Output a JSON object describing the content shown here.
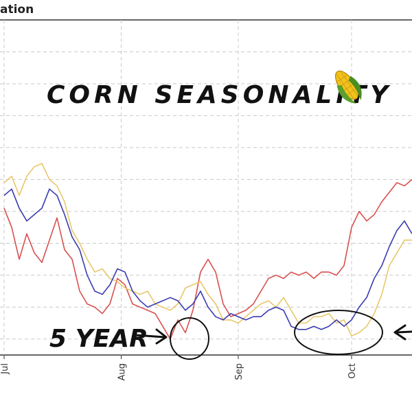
{
  "header": {
    "title": "ation"
  },
  "annotation": {
    "title": "CORN SEASONALITY",
    "label": "5 YEAR",
    "icon": "corn-icon"
  },
  "chart_data": {
    "type": "line",
    "title": "",
    "xlabel": "",
    "ylabel": "",
    "x_tick_labels": [
      {
        "label": "Jul",
        "at": 0
      },
      {
        "label": "Aug",
        "at": 31
      },
      {
        "label": "Sep",
        "at": 62
      },
      {
        "label": "Oct",
        "at": 92
      }
    ],
    "xlim": [
      0,
      108
    ],
    "ylim": [
      0,
      10.5
    ],
    "grid": true,
    "y_gridlines": [
      0.5,
      1.5,
      2.5,
      3.5,
      4.5,
      5.5,
      6.5,
      7.5,
      8.5,
      9.5
    ],
    "x_gridlines": [
      0,
      31,
      62,
      92
    ],
    "series": [
      {
        "color": "#d94f4f",
        "x": [
          0,
          2,
          4,
          6,
          8,
          10,
          12,
          14,
          16,
          18,
          20,
          22,
          24,
          26,
          28,
          30,
          32,
          34,
          36,
          38,
          40,
          42,
          44,
          46,
          48,
          50,
          52,
          54,
          56,
          58,
          60,
          62,
          64,
          66,
          68,
          70,
          72,
          74,
          76,
          78,
          80,
          82,
          84,
          86,
          88,
          90,
          92,
          94,
          96,
          98,
          100,
          102,
          104,
          106,
          108
        ],
        "values": [
          4.6,
          4.0,
          3.0,
          3.8,
          3.2,
          2.9,
          3.6,
          4.3,
          3.3,
          3.0,
          2.0,
          1.6,
          1.5,
          1.3,
          1.6,
          2.4,
          2.2,
          1.6,
          1.5,
          1.4,
          1.3,
          0.9,
          0.5,
          1.1,
          0.7,
          1.4,
          2.6,
          3.0,
          2.6,
          1.6,
          1.2,
          1.3,
          1.4,
          1.6,
          2.0,
          2.4,
          2.5,
          2.4,
          2.6,
          2.5,
          2.6,
          2.4,
          2.6,
          2.6,
          2.5,
          2.8,
          4.0,
          4.5,
          4.2,
          4.4,
          4.8,
          5.1,
          5.4,
          5.3,
          5.5
        ]
      },
      {
        "color": "#e8c76a",
        "x": [
          0,
          2,
          4,
          6,
          8,
          10,
          12,
          14,
          16,
          18,
          20,
          22,
          24,
          26,
          28,
          30,
          32,
          34,
          36,
          38,
          40,
          42,
          44,
          46,
          48,
          50,
          52,
          54,
          56,
          58,
          60,
          62,
          64,
          66,
          68,
          70,
          72,
          74,
          76,
          78,
          80,
          82,
          84,
          86,
          88,
          90,
          92,
          94,
          96,
          98,
          100,
          102,
          104,
          106,
          108
        ],
        "values": [
          5.4,
          5.6,
          5.0,
          5.6,
          5.9,
          6.0,
          5.5,
          5.3,
          4.8,
          3.9,
          3.5,
          3.0,
          2.6,
          2.7,
          2.4,
          2.3,
          2.1,
          2.0,
          1.9,
          2.0,
          1.6,
          1.5,
          1.4,
          1.6,
          2.1,
          2.2,
          2.3,
          1.9,
          1.6,
          1.1,
          1.1,
          1.0,
          1.2,
          1.4,
          1.6,
          1.7,
          1.5,
          1.8,
          1.4,
          1.0,
          1.0,
          1.2,
          1.2,
          1.3,
          1.0,
          1.1,
          0.6,
          0.7,
          0.9,
          1.3,
          1.9,
          2.8,
          3.2,
          3.6,
          3.6
        ]
      },
      {
        "color": "#3a3ab0",
        "x": [
          0,
          2,
          4,
          6,
          8,
          10,
          12,
          14,
          16,
          18,
          20,
          22,
          24,
          26,
          28,
          30,
          32,
          34,
          36,
          38,
          40,
          42,
          44,
          46,
          48,
          50,
          52,
          54,
          56,
          58,
          60,
          62,
          64,
          66,
          68,
          70,
          72,
          74,
          76,
          78,
          80,
          82,
          84,
          86,
          88,
          90,
          92,
          94,
          96,
          98,
          100,
          102,
          104,
          106,
          108
        ],
        "values": [
          5.0,
          5.2,
          4.6,
          4.2,
          4.4,
          4.6,
          5.2,
          5.0,
          4.4,
          3.7,
          3.3,
          2.5,
          2.0,
          1.9,
          2.2,
          2.7,
          2.6,
          2.0,
          1.7,
          1.5,
          1.6,
          1.7,
          1.8,
          1.7,
          1.4,
          1.6,
          2.0,
          1.5,
          1.2,
          1.1,
          1.3,
          1.2,
          1.1,
          1.2,
          1.2,
          1.4,
          1.5,
          1.4,
          0.9,
          0.8,
          0.8,
          0.9,
          0.8,
          0.9,
          1.1,
          0.9,
          1.1,
          1.5,
          1.8,
          2.4,
          2.8,
          3.4,
          3.9,
          4.2,
          3.8
        ]
      }
    ]
  }
}
